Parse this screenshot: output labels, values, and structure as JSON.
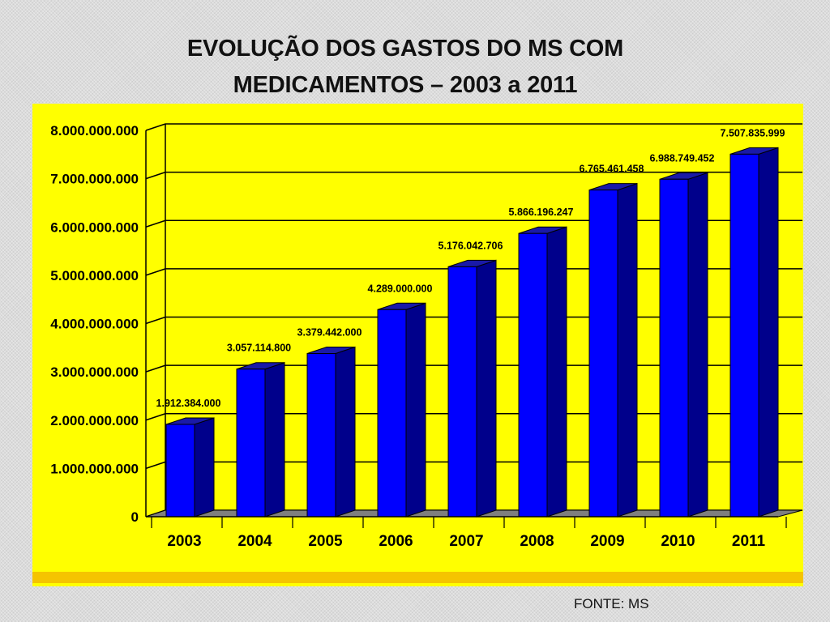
{
  "title_lines": [
    "EVOLUÇÃO DOS GASTOS DO MS COM",
    "MEDICAMENTOS – 2003 a 2011"
  ],
  "source": "FONTE: MS",
  "colors": {
    "background_panel": "#ffff00",
    "bottom_band": "#f5c400",
    "bar_front": "#0000ff",
    "bar_side": "#00008b",
    "bar_top": "#1a1aa8"
  },
  "chart_data": {
    "type": "bar",
    "title": "EVOLUÇÃO DOS GASTOS DO MS COM MEDICAMENTOS – 2003 a 2011",
    "xlabel": "",
    "ylabel": "",
    "categories": [
      "2003",
      "2004",
      "2005",
      "2006",
      "2007",
      "2008",
      "2009",
      "2010",
      "2011"
    ],
    "values": [
      1912384000,
      3057114800,
      3379442000,
      4289000000,
      5176042706,
      5866196247,
      6765461458,
      6988749452,
      7507835999
    ],
    "value_labels": [
      "1.912.384.000",
      "3.057.114.800",
      "3.379.442.000",
      "4.289.000.000",
      "5.176.042.706",
      "5.866.196.247",
      "6.765.461.458",
      "6.988.749.452",
      "7.507.835.999"
    ],
    "ylim": [
      0,
      8000000000
    ],
    "y_ticks": [
      0,
      1000000000,
      2000000000,
      3000000000,
      4000000000,
      5000000000,
      6000000000,
      7000000000,
      8000000000
    ],
    "y_tick_labels": [
      "0",
      "1.000.000.000",
      "2.000.000.000",
      "3.000.000.000",
      "4.000.000.000",
      "5.000.000.000",
      "6.000.000.000",
      "7.000.000.000",
      "8.000.000.000"
    ],
    "grid": true,
    "legend": "none",
    "style": "3d"
  }
}
